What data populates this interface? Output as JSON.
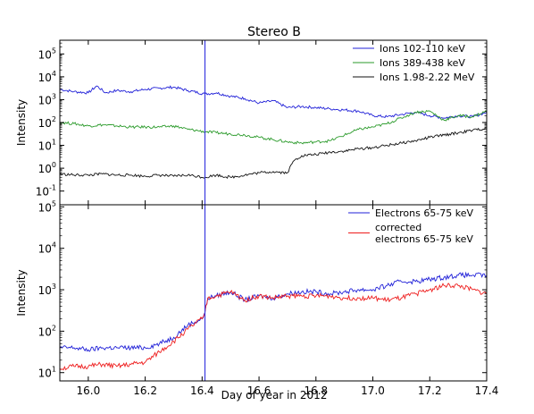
{
  "title": "Stereo B",
  "xlabel": "Day of year in 2012",
  "colors": {
    "blue": "#2020d8",
    "green": "#2a9a2a",
    "black": "#111111",
    "red": "#ee1c1c",
    "marker": "#3a3ae0"
  },
  "chart_data": [
    {
      "type": "line",
      "panel": "top",
      "title": "Stereo B",
      "xlabel": "",
      "ylabel": "Intensity",
      "xlim": [
        15.9,
        17.4
      ],
      "ylim_log10": [
        -1.6,
        5.6
      ],
      "yscale": "log",
      "yticks": [
        {
          "base": "10",
          "exp": "5",
          "log": 5
        },
        {
          "base": "10",
          "exp": "4",
          "log": 4
        },
        {
          "base": "10",
          "exp": "3",
          "log": 3
        },
        {
          "base": "10",
          "exp": "2",
          "log": 2
        },
        {
          "base": "10",
          "exp": "1",
          "log": 1
        },
        {
          "base": "10",
          "exp": "0",
          "log": 0
        },
        {
          "base": "10",
          "exp": "-1",
          "log": -1
        }
      ],
      "vline_x": 16.41,
      "legend_position": "top-right",
      "series": [
        {
          "name": "Ions 102-110 keV",
          "color": "#2020d8",
          "x": [
            15.9,
            15.95,
            16.0,
            16.03,
            16.06,
            16.1,
            16.15,
            16.2,
            16.25,
            16.3,
            16.35,
            16.41,
            16.45,
            16.5,
            16.55,
            16.6,
            16.65,
            16.7,
            16.75,
            16.8,
            16.85,
            16.9,
            16.95,
            17.0,
            17.05,
            17.1,
            17.15,
            17.2,
            17.25,
            17.3,
            17.35,
            17.4
          ],
          "log_values": [
            3.45,
            3.35,
            3.3,
            3.6,
            3.3,
            3.4,
            3.35,
            3.45,
            3.5,
            3.55,
            3.4,
            3.25,
            3.3,
            3.15,
            3.05,
            2.85,
            2.95,
            2.65,
            2.7,
            2.65,
            2.6,
            2.55,
            2.5,
            2.3,
            2.25,
            2.35,
            2.45,
            2.3,
            2.2,
            2.3,
            2.25,
            2.45
          ]
        },
        {
          "name": "Ions 389-438 keV",
          "color": "#2a9a2a",
          "x": [
            15.9,
            15.95,
            16.0,
            16.05,
            16.1,
            16.15,
            16.2,
            16.25,
            16.3,
            16.35,
            16.41,
            16.45,
            16.5,
            16.55,
            16.6,
            16.65,
            16.7,
            16.75,
            16.8,
            16.85,
            16.9,
            16.95,
            17.0,
            17.05,
            17.1,
            17.15,
            17.2,
            17.25,
            17.3,
            17.35,
            17.4
          ],
          "log_values": [
            2.0,
            1.95,
            1.85,
            1.9,
            1.85,
            1.8,
            1.8,
            1.8,
            1.85,
            1.7,
            1.6,
            1.55,
            1.5,
            1.45,
            1.35,
            1.25,
            1.15,
            1.1,
            1.15,
            1.2,
            1.45,
            1.7,
            1.8,
            1.95,
            2.2,
            2.45,
            2.5,
            2.1,
            2.3,
            2.25,
            2.5
          ]
        },
        {
          "name": "Ions 1.98-2.22 MeV",
          "color": "#111111",
          "x": [
            15.9,
            15.95,
            16.0,
            16.05,
            16.1,
            16.15,
            16.2,
            16.25,
            16.3,
            16.35,
            16.41,
            16.45,
            16.5,
            16.55,
            16.6,
            16.65,
            16.7,
            16.72,
            16.75,
            16.8,
            16.85,
            16.9,
            16.95,
            17.0,
            17.05,
            17.1,
            17.15,
            17.2,
            17.25,
            17.3,
            17.35,
            17.4
          ],
          "log_values": [
            -0.25,
            -0.3,
            -0.3,
            -0.25,
            -0.3,
            -0.3,
            -0.35,
            -0.3,
            -0.35,
            -0.3,
            -0.4,
            -0.3,
            -0.4,
            -0.3,
            -0.2,
            -0.15,
            -0.2,
            0.3,
            0.55,
            0.6,
            0.7,
            0.75,
            0.85,
            0.9,
            1.0,
            1.1,
            1.2,
            1.35,
            1.45,
            1.55,
            1.65,
            1.75
          ]
        }
      ]
    },
    {
      "type": "line",
      "panel": "bottom",
      "xlabel": "Day of year in 2012",
      "ylabel": "Intensity",
      "xlim": [
        15.9,
        17.4
      ],
      "ylim_log10": [
        0.8,
        5.05
      ],
      "yscale": "log",
      "yticks": [
        {
          "base": "10",
          "exp": "5",
          "log": 5
        },
        {
          "base": "10",
          "exp": "4",
          "log": 4
        },
        {
          "base": "10",
          "exp": "3",
          "log": 3
        },
        {
          "base": "10",
          "exp": "2",
          "log": 2
        },
        {
          "base": "10",
          "exp": "1",
          "log": 1
        }
      ],
      "xticks": [
        "16.0",
        "16.2",
        "16.4",
        "16.6",
        "16.8",
        "17.0",
        "17.2",
        "17.4"
      ],
      "xtick_values": [
        16.0,
        16.2,
        16.4,
        16.6,
        16.8,
        17.0,
        17.2,
        17.4
      ],
      "vline_x": 16.41,
      "legend_position": "top-right",
      "series": [
        {
          "name": "Electrons 65-75 keV",
          "color": "#2020d8",
          "x": [
            15.9,
            15.95,
            16.0,
            16.05,
            16.1,
            16.15,
            16.2,
            16.25,
            16.3,
            16.35,
            16.4,
            16.41,
            16.42,
            16.45,
            16.5,
            16.55,
            16.6,
            16.65,
            16.7,
            16.75,
            16.8,
            16.85,
            16.9,
            16.95,
            17.0,
            17.05,
            17.1,
            17.15,
            17.2,
            17.25,
            17.3,
            17.35,
            17.4
          ],
          "log_values": [
            1.6,
            1.6,
            1.55,
            1.6,
            1.6,
            1.6,
            1.6,
            1.7,
            1.85,
            2.15,
            2.3,
            2.45,
            2.8,
            2.85,
            2.95,
            2.75,
            2.85,
            2.8,
            2.9,
            2.95,
            2.95,
            2.9,
            2.95,
            3.0,
            3.0,
            3.1,
            3.2,
            3.2,
            3.25,
            3.3,
            3.35,
            3.35,
            3.35
          ]
        },
        {
          "name": "corrected\nelectrons 65-75 keV",
          "color": "#ee1c1c",
          "x": [
            15.9,
            15.95,
            16.0,
            16.05,
            16.1,
            16.15,
            16.2,
            16.25,
            16.3,
            16.35,
            16.4,
            16.41,
            16.42,
            16.45,
            16.5,
            16.55,
            16.6,
            16.65,
            16.7,
            16.75,
            16.8,
            16.85,
            16.9,
            16.95,
            17.0,
            17.05,
            17.1,
            17.15,
            17.2,
            17.25,
            17.3,
            17.35,
            17.4
          ],
          "log_values": [
            1.1,
            1.15,
            1.15,
            1.2,
            1.15,
            1.2,
            1.25,
            1.5,
            1.75,
            2.05,
            2.3,
            2.45,
            2.8,
            2.85,
            2.95,
            2.75,
            2.85,
            2.8,
            2.85,
            2.85,
            2.85,
            2.85,
            2.8,
            2.8,
            2.8,
            2.75,
            2.8,
            2.9,
            3.0,
            3.1,
            3.1,
            3.0,
            2.9
          ]
        }
      ]
    }
  ]
}
